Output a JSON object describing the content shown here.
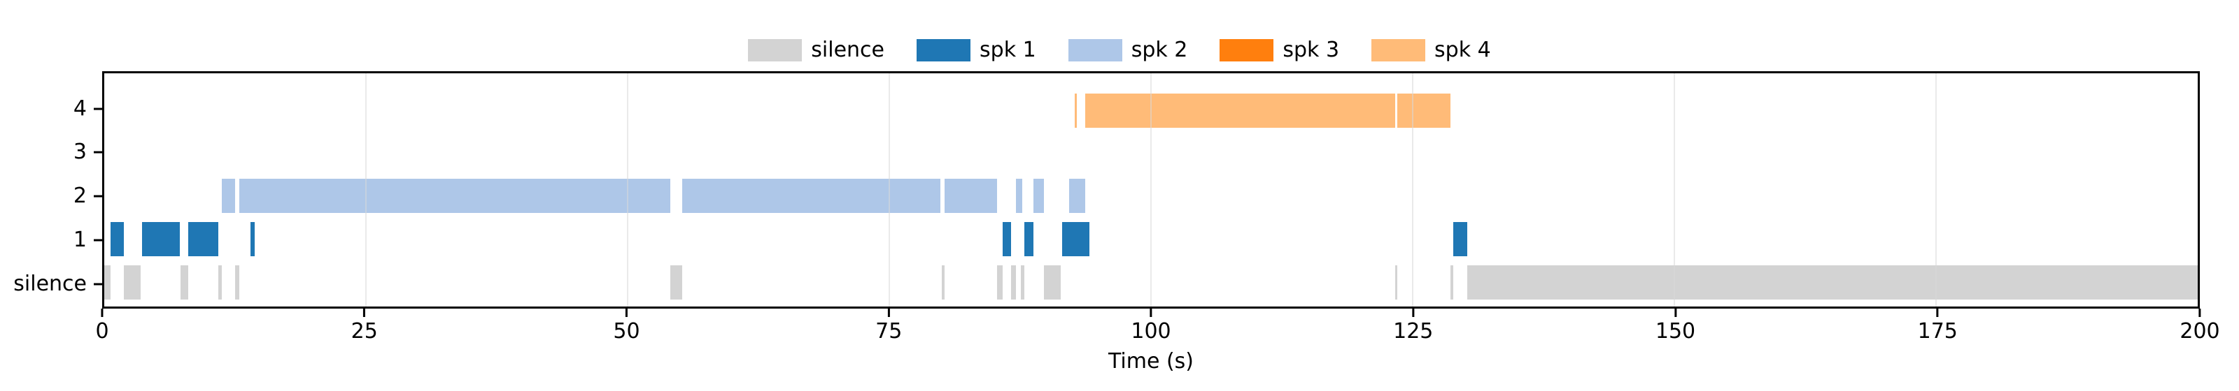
{
  "figure": {
    "background": "#ffffff",
    "grid_color": "#d9d9d9"
  },
  "legend": {
    "position": "top-center",
    "items": [
      {
        "label": "silence",
        "color": "#d3d3d3"
      },
      {
        "label": "spk 1",
        "color": "#1f77b4"
      },
      {
        "label": "spk 2",
        "color": "#aec7e8"
      },
      {
        "label": "spk 3",
        "color": "#ff7f0e"
      },
      {
        "label": "spk 4",
        "color": "#ffbb78"
      }
    ]
  },
  "chart_data": {
    "type": "bar",
    "subtype": "horizontal-interval-timeline (speaker diarization)",
    "title": "",
    "xlabel": "Time (s)",
    "xlim": [
      0,
      200
    ],
    "x_ticks": [
      0,
      25,
      50,
      75,
      100,
      125,
      150,
      175,
      200
    ],
    "grid": true,
    "legend_position": "top-center",
    "rows": [
      {
        "label": "4",
        "series": "spk 4",
        "color": "#ffbb78",
        "intervals": [
          [
            92.7,
            92.9
          ],
          [
            93.7,
            123.3
          ],
          [
            123.5,
            128.6
          ]
        ]
      },
      {
        "label": "3",
        "series": "spk 3",
        "color": "#ff7f0e",
        "intervals": []
      },
      {
        "label": "2",
        "series": "spk 2",
        "color": "#aec7e8",
        "intervals": [
          [
            11.2,
            12.5
          ],
          [
            12.9,
            54.1
          ],
          [
            55.2,
            79.9
          ],
          [
            80.3,
            85.3
          ],
          [
            87.1,
            87.7
          ],
          [
            88.8,
            89.8
          ],
          [
            92.2,
            93.7
          ]
        ]
      },
      {
        "label": "1",
        "series": "spk 1",
        "color": "#1f77b4",
        "intervals": [
          [
            0.6,
            1.9
          ],
          [
            3.6,
            7.2
          ],
          [
            8.0,
            10.9
          ],
          [
            14.0,
            14.4
          ],
          [
            85.8,
            86.6
          ],
          [
            87.9,
            88.8
          ],
          [
            91.5,
            94.1
          ],
          [
            128.9,
            130.2
          ]
        ]
      },
      {
        "label": "silence",
        "series": "silence",
        "color": "#d3d3d3",
        "intervals": [
          [
            0.0,
            0.6
          ],
          [
            1.9,
            3.5
          ],
          [
            7.3,
            8.0
          ],
          [
            10.9,
            11.2
          ],
          [
            12.5,
            12.9
          ],
          [
            54.1,
            55.2
          ],
          [
            80.0,
            80.3
          ],
          [
            85.3,
            85.8
          ],
          [
            86.6,
            87.1
          ],
          [
            87.6,
            87.9
          ],
          [
            89.8,
            91.4
          ],
          [
            123.3,
            123.5
          ],
          [
            128.6,
            128.9
          ],
          [
            130.2,
            200.0
          ]
        ]
      }
    ]
  }
}
